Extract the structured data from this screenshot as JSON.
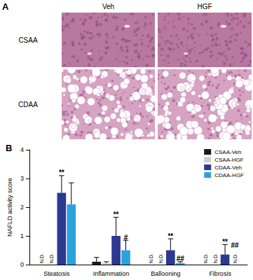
{
  "panel_a": {
    "label": "A",
    "columns": [
      "Veh",
      "HGF"
    ],
    "rows": [
      "CSAA",
      "CDAA"
    ]
  },
  "panel_b_label": "B",
  "chart_data": {
    "type": "bar",
    "y_label": "NAFLD activity score",
    "categories": [
      "Steatosis",
      "Inflammation",
      "Ballooning",
      "Fibrosis"
    ],
    "ylim": [
      0,
      4
    ],
    "yticks": [
      0,
      1,
      2,
      3,
      4
    ],
    "grid": false,
    "legend": "top-right",
    "series": [
      {
        "name": "CSAA-Veh",
        "color": "#1a1a1a",
        "values": [
          null,
          0.1,
          null,
          null
        ],
        "errors": [
          null,
          0.15,
          null,
          null
        ],
        "value_labels": [
          "N.D.",
          null,
          "N.D.",
          "N.D."
        ]
      },
      {
        "name": "CSAA-HGF",
        "color": "#d0d0d0",
        "values": [
          null,
          0.05,
          null,
          null
        ],
        "errors": [
          null,
          0.05,
          null,
          null
        ],
        "value_labels": [
          "N.D.",
          null,
          "N.D.",
          "N.D."
        ]
      },
      {
        "name": "CDAA-Veh",
        "color": "#2b3990",
        "values": [
          2.5,
          1.0,
          0.5,
          0.35
        ],
        "errors": [
          0.6,
          0.65,
          0.4,
          0.35
        ],
        "annotations": [
          "**",
          "**",
          "**",
          "**"
        ]
      },
      {
        "name": "CDAA-HGF",
        "color": "#29a3dd",
        "values": [
          2.1,
          0.5,
          0.05,
          null
        ],
        "errors": [
          0.75,
          0.35,
          0.05,
          null
        ],
        "value_labels": [
          null,
          null,
          null,
          "N.D."
        ],
        "annotations": [
          null,
          "#",
          "##",
          "##"
        ]
      }
    ]
  }
}
